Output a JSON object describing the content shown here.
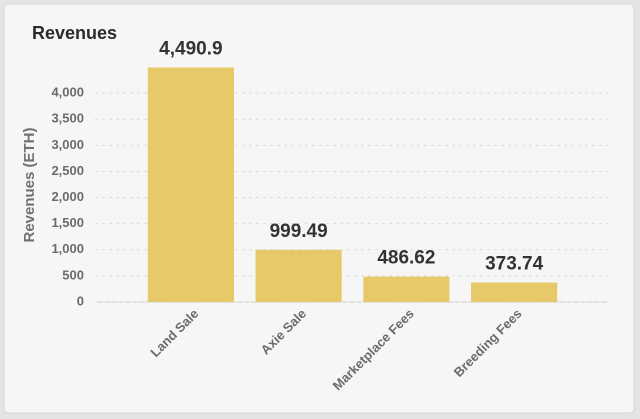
{
  "chart_data": {
    "type": "bar",
    "title": "Revenues",
    "y_label": "Revenues (ETH)",
    "categories": [
      "Land Sale",
      "Axie Sale",
      "Marketplace Fees",
      "Breeding Fees"
    ],
    "values": [
      4490.9,
      999.49,
      486.62,
      373.74
    ],
    "value_labels": [
      "4,490.9",
      "999.49",
      "486.62",
      "373.74"
    ],
    "color": "#e8c96a",
    "ylim": [
      0,
      4500
    ],
    "yticks": [
      0,
      500,
      {
        "value": 1000,
        "label": "1,000"
      },
      {
        "value": 1500,
        "label": "1,500"
      },
      {
        "value": 2000,
        "label": "2,000"
      },
      {
        "value": 2500,
        "label": "2,500"
      },
      {
        "value": 3000,
        "label": "3,000"
      },
      {
        "value": 3500,
        "label": "3,500"
      },
      {
        "value": 4000,
        "label": "4,000"
      }
    ],
    "grid": true
  }
}
